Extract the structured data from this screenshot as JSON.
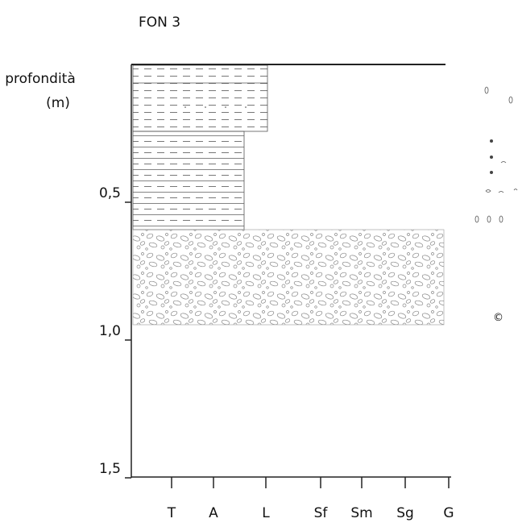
{
  "header": {
    "title": "FON 3"
  },
  "depth_axis": {
    "label_lines": [
      "profondità",
      "(m)"
    ],
    "ticks": [
      {
        "value": 0.5,
        "label": "0,5"
      },
      {
        "value": 1.0,
        "label": "1,0"
      },
      {
        "value": 1.5,
        "label": "1,5"
      }
    ]
  },
  "grain_axis": {
    "classes": [
      "T",
      "A",
      "L",
      "Sf",
      "Sm",
      "Sg",
      "G"
    ]
  },
  "note": "©"
}
